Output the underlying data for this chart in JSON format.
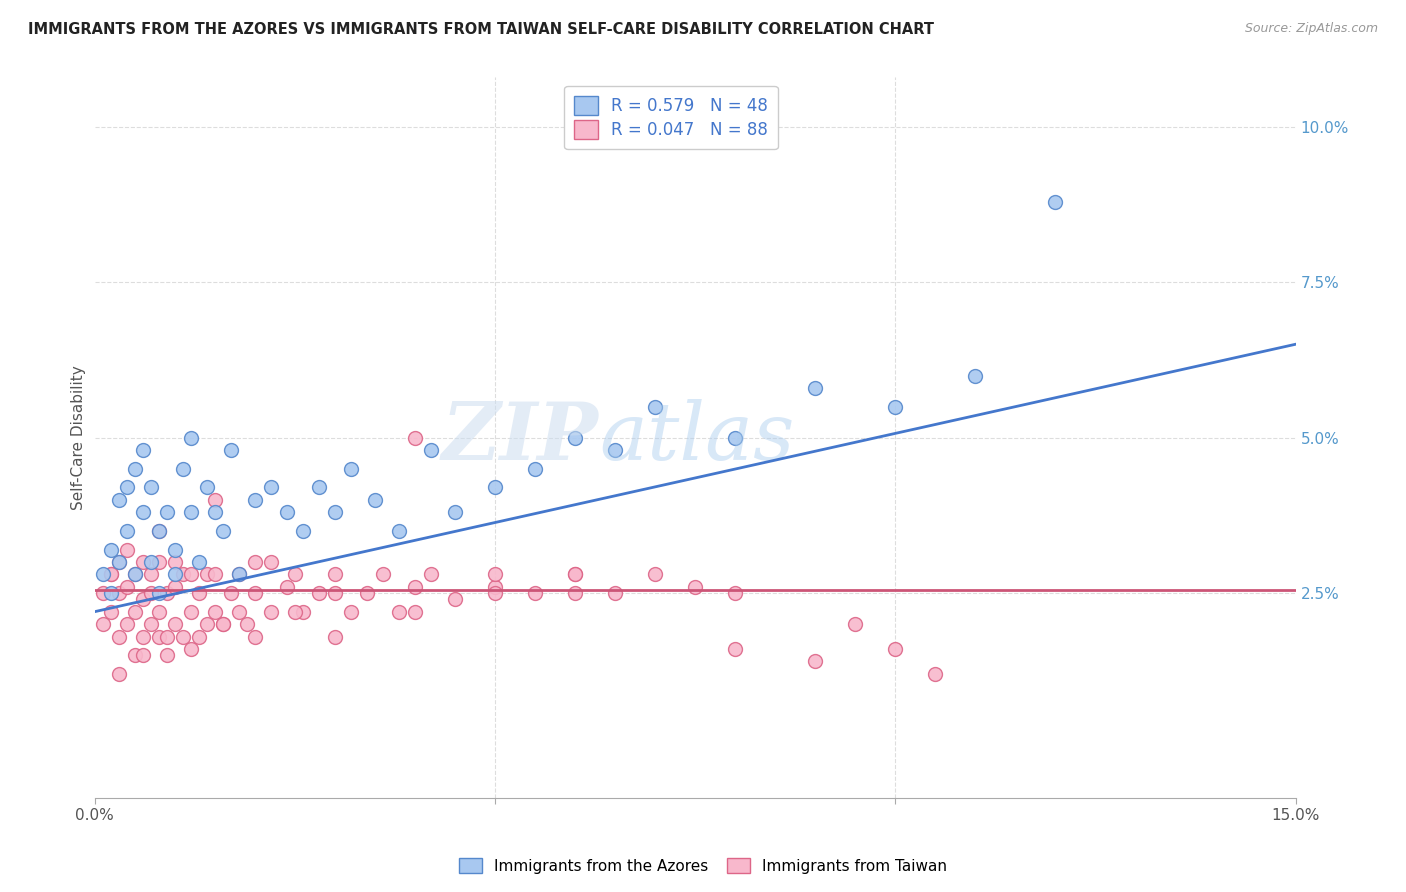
{
  "title": "IMMIGRANTS FROM THE AZORES VS IMMIGRANTS FROM TAIWAN SELF-CARE DISABILITY CORRELATION CHART",
  "source": "Source: ZipAtlas.com",
  "ylabel": "Self-Care Disability",
  "xlim": [
    0.0,
    0.15
  ],
  "ylim": [
    -0.008,
    0.108
  ],
  "r_azores": 0.579,
  "n_azores": 48,
  "r_taiwan": 0.047,
  "n_taiwan": 88,
  "blue_fill": "#A8C8F0",
  "blue_edge": "#5588CC",
  "pink_fill": "#F8B8CC",
  "pink_edge": "#DD6688",
  "blue_line": "#4477CC",
  "pink_line": "#CC5577",
  "grid_color": "#DDDDDD",
  "legend_labels": [
    "Immigrants from the Azores",
    "Immigrants from Taiwan"
  ],
  "azores_x": [
    0.001,
    0.002,
    0.002,
    0.003,
    0.003,
    0.004,
    0.004,
    0.005,
    0.005,
    0.006,
    0.006,
    0.007,
    0.007,
    0.008,
    0.008,
    0.009,
    0.01,
    0.01,
    0.011,
    0.012,
    0.012,
    0.013,
    0.014,
    0.015,
    0.016,
    0.017,
    0.018,
    0.02,
    0.022,
    0.024,
    0.026,
    0.028,
    0.03,
    0.032,
    0.035,
    0.038,
    0.042,
    0.045,
    0.05,
    0.055,
    0.06,
    0.065,
    0.07,
    0.08,
    0.09,
    0.1,
    0.11,
    0.12
  ],
  "azores_y": [
    0.028,
    0.025,
    0.032,
    0.03,
    0.04,
    0.035,
    0.042,
    0.028,
    0.045,
    0.038,
    0.048,
    0.03,
    0.042,
    0.025,
    0.035,
    0.038,
    0.028,
    0.032,
    0.045,
    0.038,
    0.05,
    0.03,
    0.042,
    0.038,
    0.035,
    0.048,
    0.028,
    0.04,
    0.042,
    0.038,
    0.035,
    0.042,
    0.038,
    0.045,
    0.04,
    0.035,
    0.048,
    0.038,
    0.042,
    0.045,
    0.05,
    0.048,
    0.055,
    0.05,
    0.058,
    0.055,
    0.06,
    0.088
  ],
  "taiwan_x": [
    0.001,
    0.001,
    0.002,
    0.002,
    0.003,
    0.003,
    0.003,
    0.004,
    0.004,
    0.004,
    0.005,
    0.005,
    0.005,
    0.006,
    0.006,
    0.006,
    0.007,
    0.007,
    0.007,
    0.008,
    0.008,
    0.008,
    0.009,
    0.009,
    0.01,
    0.01,
    0.01,
    0.011,
    0.011,
    0.012,
    0.012,
    0.013,
    0.013,
    0.014,
    0.014,
    0.015,
    0.015,
    0.016,
    0.017,
    0.018,
    0.018,
    0.019,
    0.02,
    0.02,
    0.022,
    0.024,
    0.025,
    0.026,
    0.028,
    0.03,
    0.032,
    0.034,
    0.036,
    0.038,
    0.04,
    0.042,
    0.045,
    0.05,
    0.055,
    0.06,
    0.065,
    0.07,
    0.075,
    0.08,
    0.003,
    0.006,
    0.009,
    0.012,
    0.016,
    0.02,
    0.025,
    0.03,
    0.04,
    0.05,
    0.06,
    0.08,
    0.09,
    0.095,
    0.1,
    0.105,
    0.008,
    0.015,
    0.022,
    0.03,
    0.04,
    0.05,
    0.06,
    0.002
  ],
  "taiwan_y": [
    0.025,
    0.02,
    0.022,
    0.028,
    0.018,
    0.025,
    0.03,
    0.02,
    0.026,
    0.032,
    0.015,
    0.022,
    0.028,
    0.018,
    0.024,
    0.03,
    0.02,
    0.025,
    0.028,
    0.018,
    0.022,
    0.03,
    0.015,
    0.025,
    0.02,
    0.026,
    0.03,
    0.018,
    0.028,
    0.022,
    0.028,
    0.018,
    0.025,
    0.02,
    0.028,
    0.022,
    0.028,
    0.02,
    0.025,
    0.022,
    0.028,
    0.02,
    0.025,
    0.03,
    0.022,
    0.026,
    0.028,
    0.022,
    0.025,
    0.028,
    0.022,
    0.025,
    0.028,
    0.022,
    0.026,
    0.028,
    0.024,
    0.026,
    0.025,
    0.028,
    0.025,
    0.028,
    0.026,
    0.025,
    0.012,
    0.015,
    0.018,
    0.016,
    0.02,
    0.018,
    0.022,
    0.018,
    0.022,
    0.025,
    0.028,
    0.016,
    0.014,
    0.02,
    0.016,
    0.012,
    0.035,
    0.04,
    0.03,
    0.025,
    0.05,
    0.028,
    0.025,
    0.028
  ]
}
